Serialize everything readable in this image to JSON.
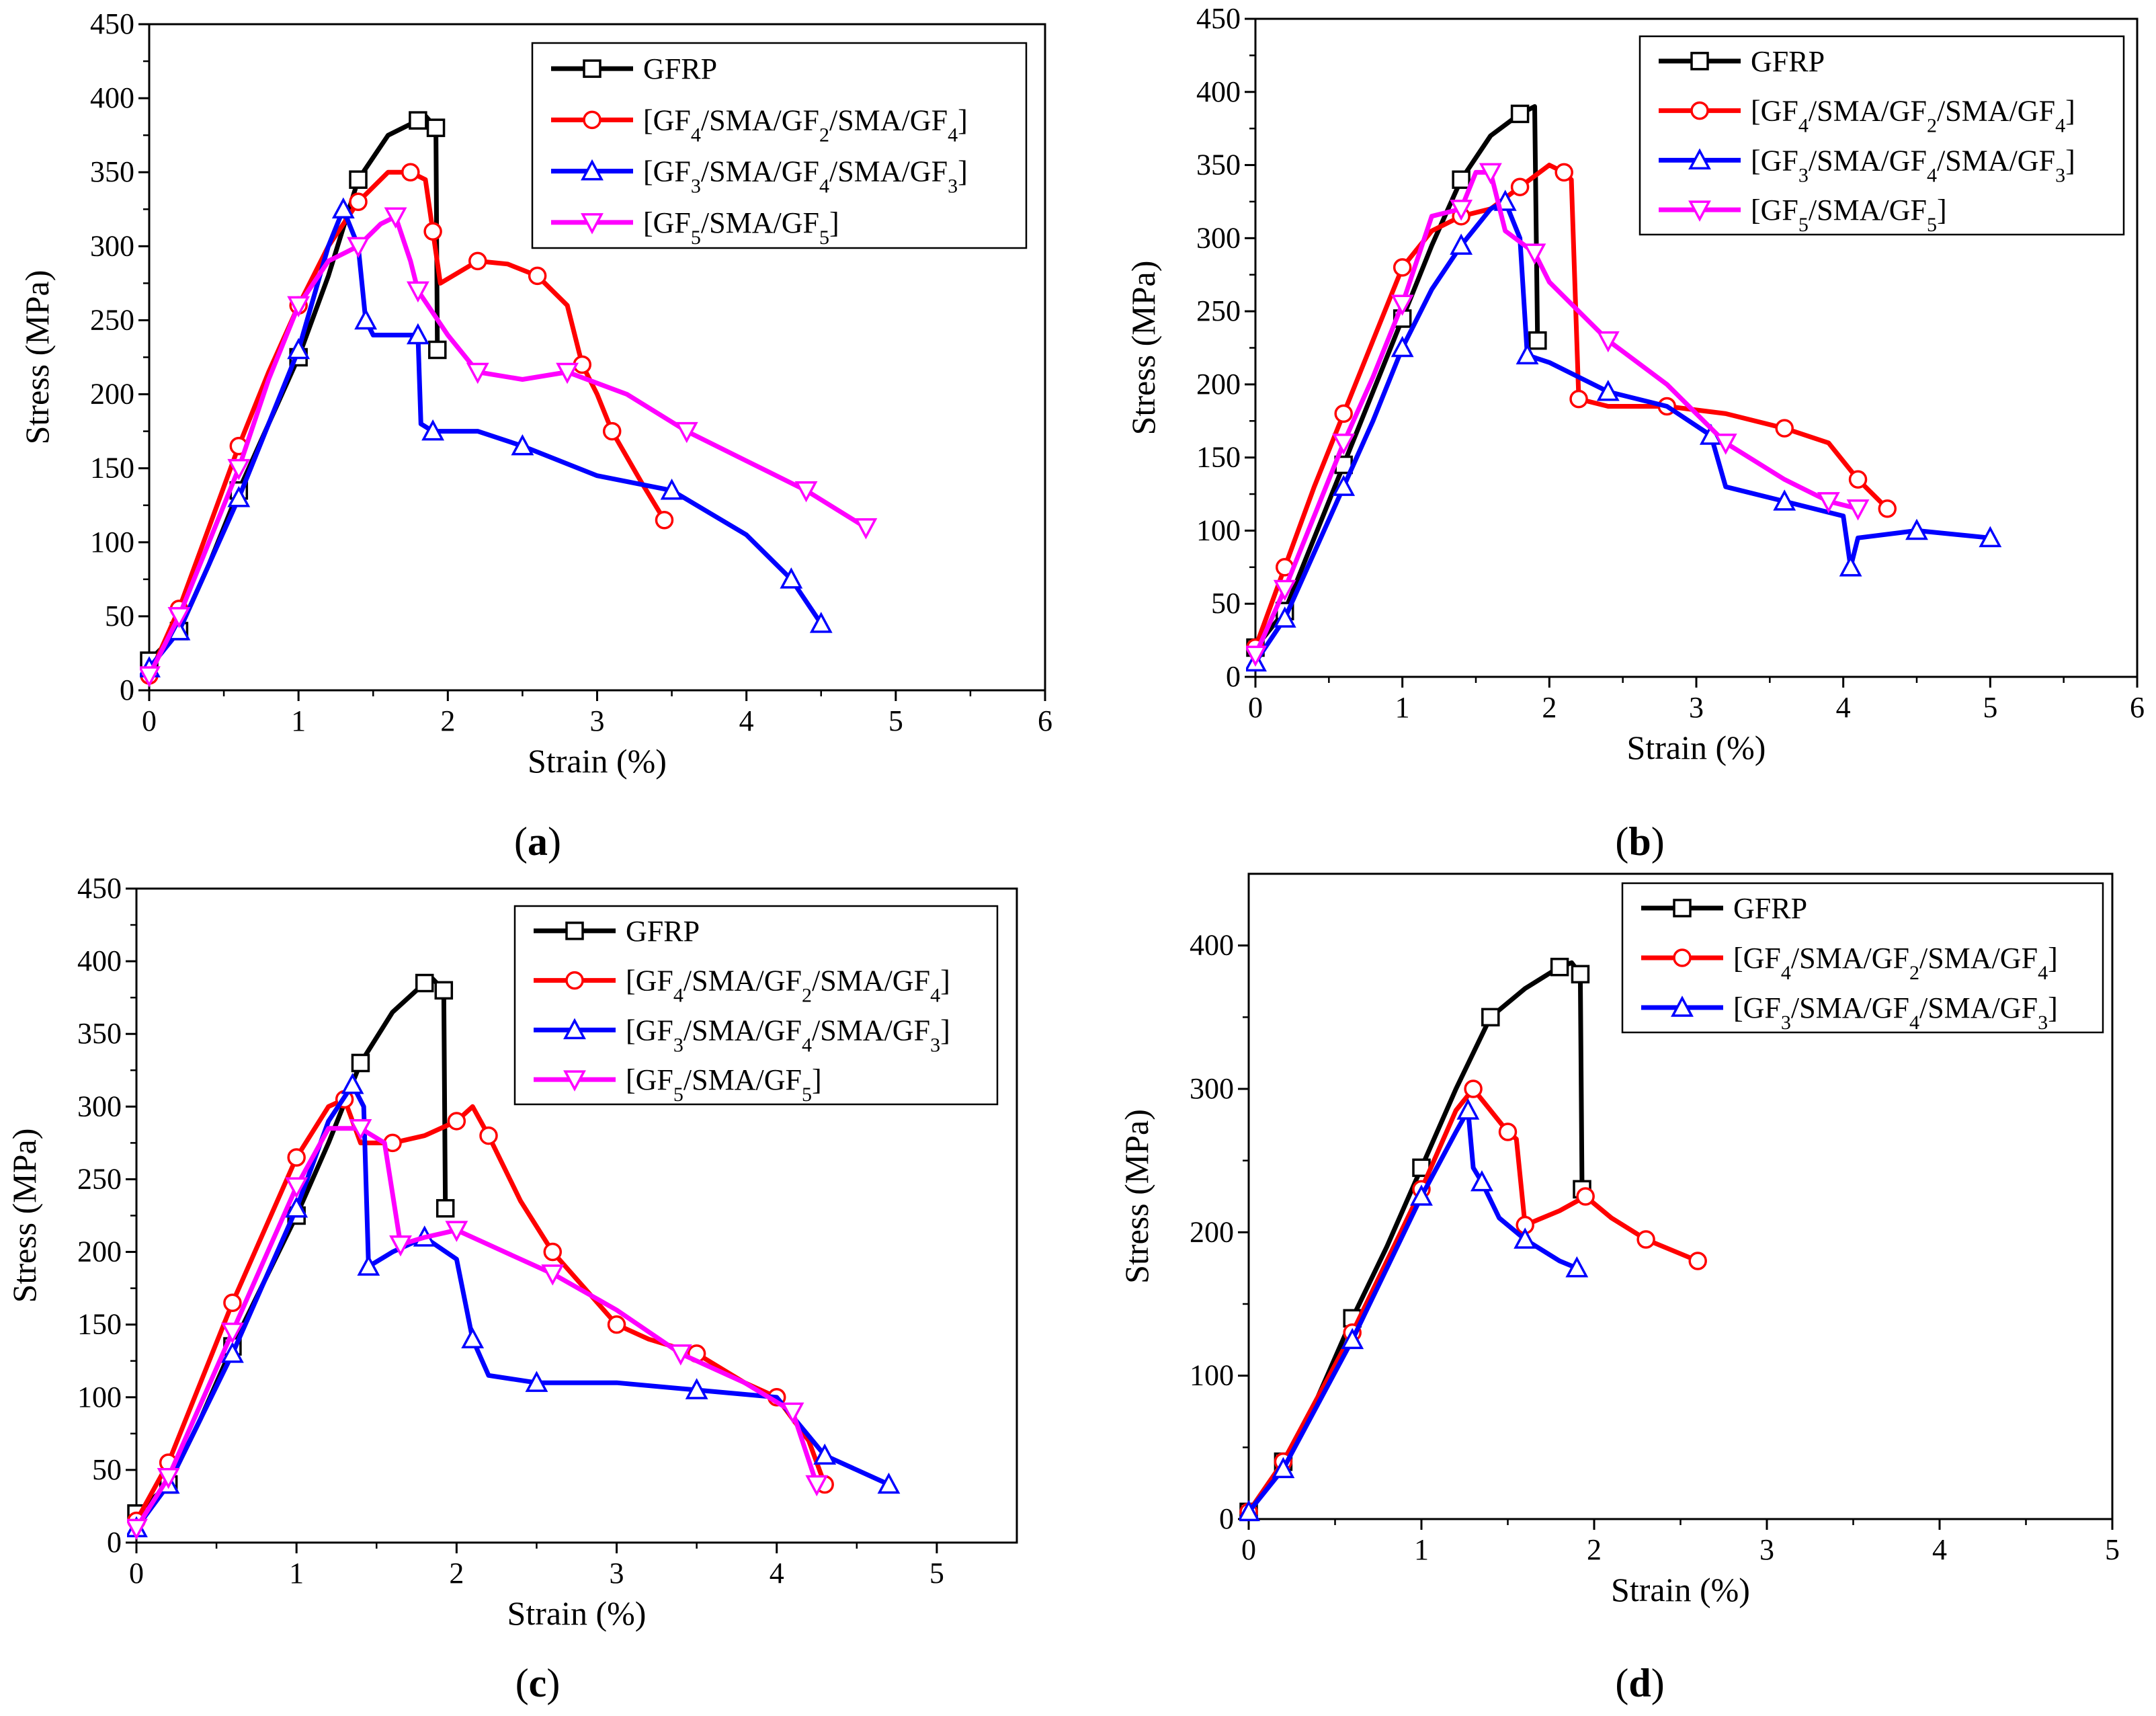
{
  "figure": {
    "panel_labels": [
      {
        "open": "(",
        "letter": "a",
        "close": ")"
      },
      {
        "open": "(",
        "letter": "b",
        "close": ")"
      },
      {
        "open": "(",
        "letter": "c",
        "close": ")"
      },
      {
        "open": "(",
        "letter": "d",
        "close": ")"
      }
    ]
  },
  "series_styles": {
    "GFRP": {
      "color": "#000000",
      "marker": "square"
    },
    "L1": {
      "color": "#ff0000",
      "marker": "circle"
    },
    "L2": {
      "color": "#0000ff",
      "marker": "triangle-up"
    },
    "L3": {
      "color": "#ff00ff",
      "marker": "triangle-down"
    }
  },
  "legend_labels": {
    "GFRP": [
      {
        "t": "GFRP"
      }
    ],
    "L1": [
      {
        "t": "[GF"
      },
      {
        "t": "4",
        "sub": true
      },
      {
        "t": "/SMA/GF"
      },
      {
        "t": "2",
        "sub": true
      },
      {
        "t": "/SMA/GF"
      },
      {
        "t": "4",
        "sub": true
      },
      {
        "t": "]"
      }
    ],
    "L2": [
      {
        "t": "[GF"
      },
      {
        "t": "3",
        "sub": true
      },
      {
        "t": "/SMA/GF"
      },
      {
        "t": "4",
        "sub": true
      },
      {
        "t": "/SMA/GF"
      },
      {
        "t": "3",
        "sub": true
      },
      {
        "t": "]"
      }
    ],
    "L3": [
      {
        "t": "[GF"
      },
      {
        "t": "5",
        "sub": true
      },
      {
        "t": "/SMA/GF"
      },
      {
        "t": "5",
        "sub": true
      },
      {
        "t": "]"
      }
    ]
  },
  "chart_data": [
    {
      "panel": "a",
      "type": "line",
      "xlabel": "Strain (%)",
      "ylabel": "Stress (MPa)",
      "xlim": [
        0,
        6
      ],
      "ylim": [
        0,
        450
      ],
      "xticks": [
        0,
        1,
        2,
        3,
        4,
        5,
        6
      ],
      "yticks": [
        0,
        50,
        100,
        150,
        200,
        250,
        300,
        350,
        400,
        450
      ],
      "legend": "top-right",
      "series": [
        {
          "key": "GFRP",
          "x": [
            0,
            0.2,
            0.4,
            0.6,
            0.8,
            1.0,
            1.2,
            1.4,
            1.6,
            1.8,
            1.85,
            1.92,
            1.93
          ],
          "y": [
            20,
            40,
            85,
            135,
            180,
            225,
            280,
            345,
            375,
            385,
            388,
            380,
            230
          ]
        },
        {
          "key": "L1",
          "x": [
            0,
            0.2,
            0.4,
            0.6,
            0.8,
            1.0,
            1.2,
            1.4,
            1.6,
            1.75,
            1.85,
            1.9,
            1.95,
            2.2,
            2.4,
            2.6,
            2.8,
            2.9,
            3.0,
            3.1,
            3.3,
            3.45
          ],
          "y": [
            10,
            55,
            110,
            165,
            215,
            260,
            300,
            330,
            350,
            350,
            345,
            310,
            275,
            290,
            288,
            280,
            260,
            220,
            200,
            175,
            140,
            115
          ]
        },
        {
          "key": "L2",
          "x": [
            0,
            0.2,
            0.4,
            0.6,
            0.8,
            1.0,
            1.2,
            1.3,
            1.4,
            1.45,
            1.5,
            1.8,
            1.82,
            1.9,
            2.2,
            2.5,
            3.0,
            3.5,
            4.0,
            4.3,
            4.5
          ],
          "y": [
            15,
            40,
            85,
            130,
            180,
            230,
            300,
            325,
            300,
            250,
            240,
            240,
            180,
            175,
            175,
            165,
            145,
            135,
            105,
            75,
            45
          ]
        },
        {
          "key": "L3",
          "x": [
            0,
            0.2,
            0.4,
            0.6,
            0.8,
            1.0,
            1.2,
            1.4,
            1.55,
            1.65,
            1.75,
            1.8,
            2.0,
            2.2,
            2.5,
            2.8,
            3.2,
            3.6,
            4.0,
            4.4,
            4.8
          ],
          "y": [
            10,
            50,
            100,
            150,
            210,
            260,
            290,
            300,
            315,
            320,
            290,
            270,
            240,
            215,
            210,
            215,
            200,
            175,
            155,
            135,
            110
          ]
        }
      ]
    },
    {
      "panel": "b",
      "type": "line",
      "xlabel": "Strain (%)",
      "ylabel": "Stress (MPa)",
      "xlim": [
        0,
        6
      ],
      "ylim": [
        0,
        450
      ],
      "xticks": [
        0,
        1,
        2,
        3,
        4,
        5,
        6
      ],
      "yticks": [
        0,
        50,
        100,
        150,
        200,
        250,
        300,
        350,
        400,
        450
      ],
      "legend": "top-right",
      "series": [
        {
          "key": "GFRP",
          "x": [
            0,
            0.2,
            0.4,
            0.6,
            0.8,
            1.0,
            1.2,
            1.4,
            1.6,
            1.8,
            1.9,
            1.92
          ],
          "y": [
            20,
            45,
            95,
            145,
            195,
            245,
            295,
            340,
            370,
            385,
            390,
            230
          ]
        },
        {
          "key": "L1",
          "x": [
            0,
            0.2,
            0.4,
            0.6,
            0.8,
            1.0,
            1.2,
            1.4,
            1.6,
            1.8,
            2.0,
            2.1,
            2.15,
            2.2,
            2.4,
            2.8,
            3.2,
            3.6,
            3.9,
            4.1,
            4.3
          ],
          "y": [
            20,
            75,
            130,
            180,
            230,
            280,
            305,
            315,
            320,
            335,
            350,
            345,
            340,
            190,
            185,
            185,
            180,
            170,
            160,
            135,
            115
          ]
        },
        {
          "key": "L2",
          "x": [
            0,
            0.2,
            0.4,
            0.6,
            0.8,
            1.0,
            1.2,
            1.4,
            1.6,
            1.7,
            1.8,
            1.85,
            2.0,
            2.4,
            2.8,
            3.1,
            3.2,
            3.6,
            4.0,
            4.05,
            4.1,
            4.5,
            5.0
          ],
          "y": [
            10,
            40,
            85,
            130,
            175,
            225,
            265,
            295,
            320,
            325,
            300,
            220,
            215,
            195,
            185,
            165,
            130,
            120,
            110,
            75,
            95,
            100,
            95
          ]
        },
        {
          "key": "L3",
          "x": [
            0,
            0.2,
            0.4,
            0.6,
            0.8,
            1.0,
            1.2,
            1.4,
            1.5,
            1.6,
            1.7,
            1.9,
            2.0,
            2.4,
            2.8,
            3.2,
            3.6,
            3.9,
            4.1
          ],
          "y": [
            15,
            60,
            110,
            160,
            205,
            255,
            315,
            320,
            345,
            345,
            305,
            290,
            270,
            230,
            200,
            160,
            135,
            120,
            115
          ]
        }
      ]
    },
    {
      "panel": "c",
      "type": "line",
      "xlabel": "Strain (%)",
      "ylabel": "Stress (MPa)",
      "xlim": [
        0,
        5.5
      ],
      "ylim": [
        0,
        450
      ],
      "xticks": [
        0,
        1,
        2,
        3,
        4,
        5
      ],
      "yticks": [
        0,
        50,
        100,
        150,
        200,
        250,
        300,
        350,
        400,
        450
      ],
      "legend": "top-right",
      "series": [
        {
          "key": "GFRP",
          "x": [
            0,
            0.2,
            0.4,
            0.6,
            0.8,
            1.0,
            1.2,
            1.4,
            1.6,
            1.8,
            1.85,
            1.92,
            1.93
          ],
          "y": [
            20,
            40,
            85,
            135,
            180,
            225,
            275,
            330,
            365,
            385,
            388,
            380,
            230
          ]
        },
        {
          "key": "L1",
          "x": [
            0,
            0.2,
            0.4,
            0.6,
            0.8,
            1.0,
            1.2,
            1.3,
            1.4,
            1.6,
            1.8,
            2.0,
            2.1,
            2.2,
            2.4,
            2.6,
            2.8,
            3.0,
            3.2,
            3.5,
            3.8,
            4.0,
            4.2,
            4.3
          ],
          "y": [
            15,
            55,
            110,
            165,
            215,
            265,
            300,
            305,
            275,
            275,
            280,
            290,
            300,
            280,
            235,
            200,
            175,
            150,
            140,
            130,
            110,
            100,
            70,
            40
          ]
        },
        {
          "key": "L2",
          "x": [
            0,
            0.2,
            0.4,
            0.6,
            0.8,
            1.0,
            1.2,
            1.35,
            1.42,
            1.45,
            1.6,
            1.8,
            2.0,
            2.1,
            2.2,
            2.5,
            3.0,
            3.5,
            4.0,
            4.3,
            4.7
          ],
          "y": [
            10,
            40,
            85,
            130,
            180,
            230,
            290,
            315,
            300,
            190,
            200,
            210,
            195,
            140,
            115,
            110,
            110,
            105,
            100,
            60,
            40
          ]
        },
        {
          "key": "L3",
          "x": [
            0,
            0.2,
            0.4,
            0.6,
            0.8,
            1.0,
            1.2,
            1.4,
            1.55,
            1.65,
            1.8,
            2.0,
            2.3,
            2.6,
            3.0,
            3.4,
            3.8,
            4.1,
            4.25
          ],
          "y": [
            10,
            45,
            95,
            145,
            195,
            245,
            285,
            285,
            275,
            205,
            210,
            215,
            200,
            185,
            160,
            130,
            110,
            90,
            40
          ]
        }
      ]
    },
    {
      "panel": "d",
      "type": "line",
      "xlabel": "Strain (%)",
      "ylabel": "Stress (MPa)",
      "xlim": [
        0,
        5
      ],
      "ylim": [
        0,
        450
      ],
      "xticks": [
        0,
        1,
        2,
        3,
        4,
        5
      ],
      "yticks": [
        0,
        100,
        200,
        300,
        400
      ],
      "legend": "top-right",
      "series": [
        {
          "key": "GFRP",
          "x": [
            0,
            0.2,
            0.4,
            0.6,
            0.8,
            1.0,
            1.2,
            1.4,
            1.6,
            1.8,
            1.87,
            1.92,
            1.93
          ],
          "y": [
            5,
            40,
            85,
            140,
            190,
            245,
            300,
            350,
            370,
            385,
            388,
            380,
            230
          ]
        },
        {
          "key": "L1",
          "x": [
            0,
            0.2,
            0.4,
            0.6,
            0.8,
            1.0,
            1.2,
            1.3,
            1.4,
            1.5,
            1.55,
            1.6,
            1.8,
            1.95,
            2.1,
            2.3,
            2.5,
            2.6
          ],
          "y": [
            5,
            40,
            85,
            130,
            180,
            230,
            285,
            300,
            285,
            270,
            265,
            205,
            215,
            225,
            210,
            195,
            185,
            180
          ]
        },
        {
          "key": "L2",
          "x": [
            0,
            0.2,
            0.4,
            0.6,
            0.8,
            1.0,
            1.2,
            1.27,
            1.3,
            1.35,
            1.45,
            1.6,
            1.8,
            1.9
          ],
          "y": [
            5,
            35,
            80,
            125,
            175,
            225,
            270,
            285,
            245,
            235,
            210,
            195,
            180,
            175
          ]
        }
      ]
    }
  ]
}
